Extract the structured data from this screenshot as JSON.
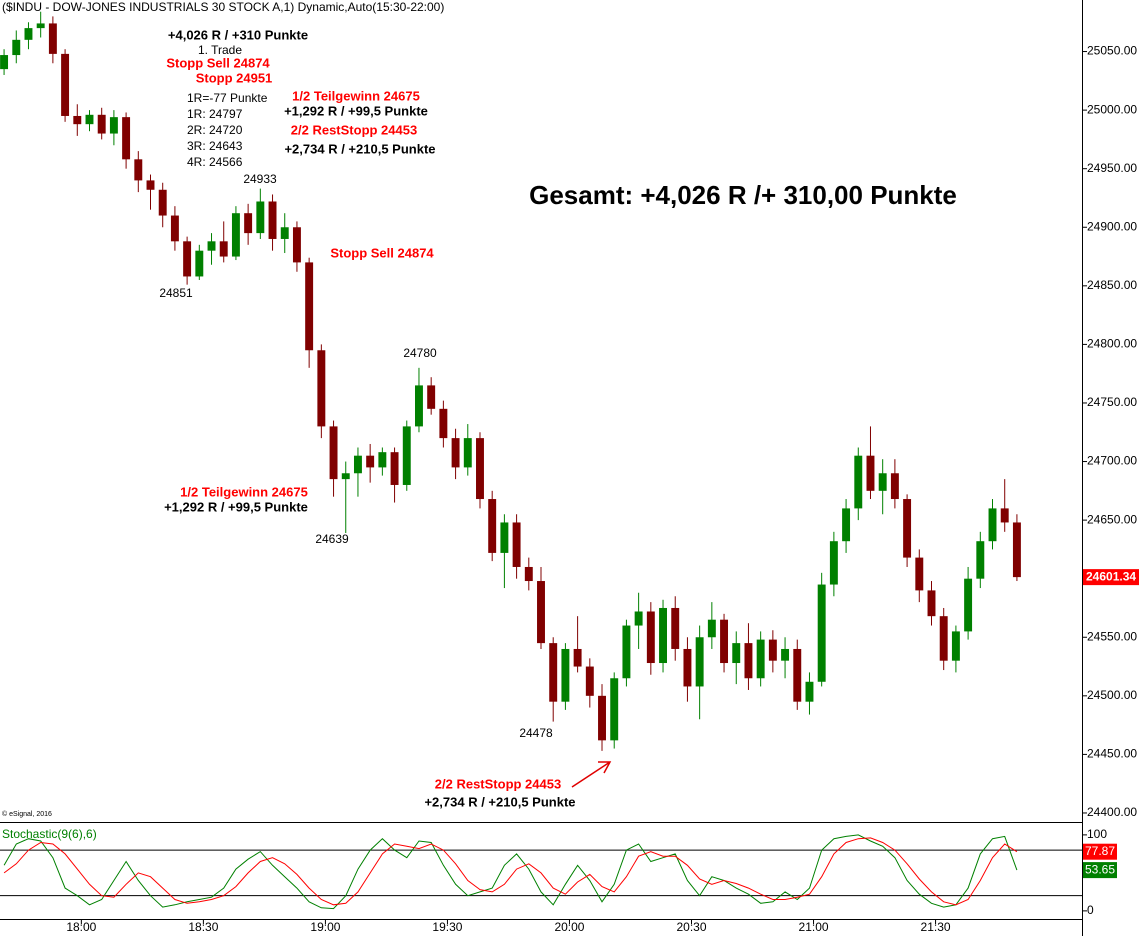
{
  "chart_data": [
    {
      "type": "candlestick",
      "title": "($INDU - DOW-JONES INDUSTRIALS 30 STOCK A,1) Dynamic,Auto(15:30-22:00)",
      "copyright": "© eSignal, 2016",
      "up_color": "#008000",
      "down_color": "#800000",
      "last_color": "#ff0000",
      "xlim": [
        1060,
        1326
      ],
      "ylim": [
        24394,
        25094
      ],
      "yticks": [
        {
          "value": 24400,
          "label": "24400.00"
        },
        {
          "value": 24450,
          "label": "24450.00"
        },
        {
          "value": 24500,
          "label": "24500.00"
        },
        {
          "value": 24550,
          "label": "24550.00"
        },
        {
          "value": 24600,
          "label": "24600.00"
        },
        {
          "value": 24650,
          "label": "24650.00"
        },
        {
          "value": 24700,
          "label": "24700.00"
        },
        {
          "value": 24750,
          "label": "24750.00"
        },
        {
          "value": 24800,
          "label": "24800.00"
        },
        {
          "value": 24850,
          "label": "24850.00"
        },
        {
          "value": 24900,
          "label": "24900.00"
        },
        {
          "value": 24950,
          "label": "24950.00"
        },
        {
          "value": 25000,
          "label": "25000.00"
        },
        {
          "value": 25050,
          "label": "25050.00"
        }
      ],
      "x": [
        1061,
        1064,
        1067,
        1070,
        1073,
        1076,
        1079,
        1082,
        1085,
        1088,
        1091,
        1094,
        1097,
        1100,
        1103,
        1106,
        1109,
        1112,
        1115,
        1118,
        1121,
        1124,
        1127,
        1130,
        1133,
        1136,
        1139,
        1142,
        1145,
        1148,
        1151,
        1154,
        1157,
        1160,
        1163,
        1166,
        1169,
        1172,
        1175,
        1178,
        1181,
        1184,
        1187,
        1190,
        1193,
        1196,
        1199,
        1202,
        1205,
        1208,
        1211,
        1214,
        1217,
        1220,
        1223,
        1226,
        1229,
        1232,
        1235,
        1238,
        1241,
        1244,
        1247,
        1250,
        1253,
        1256,
        1259,
        1262,
        1265,
        1268,
        1271,
        1274,
        1277,
        1280,
        1283,
        1286,
        1289,
        1292,
        1295,
        1298,
        1301,
        1304,
        1307,
        1310
      ],
      "open": [
        25035,
        25047,
        25060,
        25070,
        25074,
        25048,
        24995,
        24988,
        24996,
        24980,
        24994,
        24958,
        24940,
        24932,
        24910,
        24888,
        24858,
        24880,
        24888,
        24875,
        24912,
        24895,
        24922,
        24890,
        24900,
        24870,
        24795,
        24730,
        24685,
        24690,
        24705,
        24695,
        24708,
        24680,
        24730,
        24765,
        24745,
        24720,
        24695,
        24720,
        24668,
        24622,
        24648,
        24610,
        24598,
        24545,
        24495,
        24540,
        24525,
        24500,
        24462,
        24515,
        24560,
        24572,
        24528,
        24575,
        24540,
        24508,
        24550,
        24565,
        24528,
        24545,
        24515,
        24548,
        24530,
        24540,
        24495,
        24512,
        24595,
        24632,
        24660,
        24705,
        24675,
        24690,
        24668,
        24618,
        24590,
        24568,
        24530,
        24555,
        24600,
        24632,
        24660,
        24648
      ],
      "high": [
        25052,
        25068,
        25075,
        25084,
        25080,
        25052,
        25005,
        25000,
        25002,
        25000,
        24998,
        24965,
        24945,
        24938,
        24918,
        24892,
        24885,
        24895,
        24905,
        24918,
        24920,
        24933,
        24928,
        24912,
        24905,
        24874,
        24800,
        24735,
        24700,
        24712,
        24715,
        24712,
        24712,
        24735,
        24780,
        24772,
        24752,
        24728,
        24732,
        24725,
        24675,
        24655,
        24655,
        24618,
        24610,
        24550,
        24545,
        24568,
        24532,
        24510,
        24520,
        24565,
        24588,
        24580,
        24582,
        24585,
        24550,
        24560,
        24580,
        24570,
        24555,
        24562,
        24555,
        24556,
        24550,
        24548,
        24520,
        24605,
        24640,
        24668,
        24712,
        24730,
        24702,
        24702,
        24672,
        24625,
        24598,
        24575,
        24560,
        24610,
        24640,
        24668,
        24685,
        24655
      ],
      "low": [
        25030,
        25040,
        25052,
        25062,
        25040,
        24990,
        24978,
        24982,
        24975,
        24970,
        24950,
        24930,
        24915,
        24900,
        24880,
        24851,
        24855,
        24868,
        24870,
        24872,
        24885,
        24890,
        24880,
        24878,
        24862,
        24780,
        24720,
        24670,
        24639,
        24670,
        24682,
        24688,
        24665,
        24675,
        24725,
        24740,
        24712,
        24685,
        24688,
        24660,
        24615,
        24592,
        24600,
        24590,
        24540,
        24478,
        24488,
        24520,
        24490,
        24453,
        24455,
        24508,
        24540,
        24518,
        24520,
        24530,
        24495,
        24480,
        24540,
        24520,
        24510,
        24505,
        24508,
        24520,
        24515,
        24488,
        24484,
        24508,
        24585,
        24622,
        24650,
        24668,
        24655,
        24660,
        24610,
        24580,
        24560,
        24522,
        24520,
        24548,
        24592,
        24625,
        24640,
        24598
      ],
      "close": [
        25047,
        25060,
        25070,
        25074,
        25048,
        24995,
        24988,
        24996,
        24980,
        24994,
        24958,
        24940,
        24932,
        24910,
        24888,
        24858,
        24880,
        24888,
        24875,
        24912,
        24895,
        24922,
        24890,
        24900,
        24870,
        24795,
        24730,
        24685,
        24690,
        24705,
        24695,
        24708,
        24680,
        24730,
        24765,
        24745,
        24720,
        24695,
        24720,
        24668,
        24622,
        24648,
        24610,
        24598,
        24545,
        24495,
        24540,
        24525,
        24500,
        24462,
        24515,
        24560,
        24572,
        24528,
        24575,
        24540,
        24508,
        24550,
        24565,
        24528,
        24545,
        24515,
        24548,
        24530,
        24540,
        24495,
        24512,
        24595,
        24632,
        24660,
        24705,
        24675,
        24690,
        24668,
        24618,
        24590,
        24568,
        24530,
        24555,
        24600,
        24632,
        24660,
        24648,
        24601.34
      ],
      "annotations": [
        {
          "text": "+4,026 R / +310 Punkte",
          "color": "#000000"
        },
        {
          "text": "1. Trade",
          "color": "#000000"
        },
        {
          "text": "Stopp Sell 24874",
          "color": "#ff0000"
        },
        {
          "text": "Stopp 24951",
          "color": "#ff0000"
        },
        {
          "text": "1R=-77 Punkte",
          "color": "#000000"
        },
        {
          "text": "1R: 24797",
          "color": "#000000"
        },
        {
          "text": "2R: 24720",
          "color": "#000000"
        },
        {
          "text": "3R: 24643",
          "color": "#000000"
        },
        {
          "text": "4R: 24566",
          "color": "#000000"
        },
        {
          "text": "1/2 Teilgewinn 24675",
          "color": "#ff0000"
        },
        {
          "text": "+1,292 R / +99,5 Punkte",
          "color": "#000000"
        },
        {
          "text": "2/2 RestStopp 24453",
          "color": "#ff0000"
        },
        {
          "text": "+2,734 R / +210,5 Punkte",
          "color": "#000000"
        },
        {
          "text": "Gesamt: +4,026 R /+ 310,00 Punkte",
          "color": "#000000"
        },
        {
          "text": "24933",
          "color": "#000000"
        },
        {
          "text": "24851",
          "color": "#000000"
        },
        {
          "text": "Stopp Sell 24874",
          "color": "#ff0000"
        },
        {
          "text": "24780",
          "color": "#000000"
        },
        {
          "text": "1/2 Teilgewinn 24675",
          "color": "#ff0000"
        },
        {
          "text": "+1,292 R / +99,5 Punkte",
          "color": "#000000"
        },
        {
          "text": "24639",
          "color": "#000000"
        },
        {
          "text": "24478",
          "color": "#000000"
        },
        {
          "text": "2/2 RestStopp 24453",
          "color": "#ff0000"
        },
        {
          "text": "+2,734 R / +210,5 Punkte",
          "color": "#000000"
        }
      ]
    },
    {
      "type": "line",
      "title": "Stochastic(9(6),6)",
      "xlim": [
        1060,
        1326
      ],
      "xticks": [
        {
          "value": 1080,
          "label": "18:00"
        },
        {
          "value": 1110,
          "label": "18:30"
        },
        {
          "value": 1140,
          "label": "19:00"
        },
        {
          "value": 1170,
          "label": "19:30"
        },
        {
          "value": 1200,
          "label": "20:00"
        },
        {
          "value": 1230,
          "label": "20:30"
        },
        {
          "value": 1260,
          "label": "21:00"
        },
        {
          "value": 1290,
          "label": "21:30"
        }
      ],
      "ylim": [
        -12,
        113
      ],
      "yticks": [
        0,
        100
      ],
      "levels": [
        20,
        80
      ],
      "x": [
        1061,
        1064,
        1067,
        1070,
        1073,
        1076,
        1079,
        1082,
        1085,
        1088,
        1091,
        1094,
        1097,
        1100,
        1103,
        1106,
        1109,
        1112,
        1115,
        1118,
        1121,
        1124,
        1127,
        1130,
        1133,
        1136,
        1139,
        1142,
        1145,
        1148,
        1151,
        1154,
        1157,
        1160,
        1163,
        1166,
        1169,
        1172,
        1175,
        1178,
        1181,
        1184,
        1187,
        1190,
        1193,
        1196,
        1199,
        1202,
        1205,
        1208,
        1211,
        1214,
        1217,
        1220,
        1223,
        1226,
        1229,
        1232,
        1235,
        1238,
        1241,
        1244,
        1247,
        1250,
        1253,
        1256,
        1259,
        1262,
        1265,
        1268,
        1271,
        1274,
        1277,
        1280,
        1283,
        1286,
        1289,
        1292,
        1295,
        1298,
        1301,
        1304,
        1307,
        1310
      ],
      "series": [
        {
          "name": "%K",
          "color": "#008000",
          "values": [
            60,
            88,
            95,
            92,
            70,
            30,
            20,
            8,
            15,
            40,
            65,
            40,
            20,
            5,
            8,
            12,
            15,
            18,
            30,
            55,
            68,
            78,
            60,
            45,
            30,
            12,
            4,
            3,
            20,
            55,
            80,
            95,
            80,
            70,
            92,
            90,
            60,
            35,
            20,
            25,
            30,
            60,
            75,
            55,
            25,
            8,
            35,
            60,
            40,
            12,
            35,
            80,
            88,
            65,
            70,
            75,
            40,
            20,
            45,
            40,
            30,
            22,
            10,
            12,
            25,
            15,
            30,
            80,
            95,
            98,
            100,
            92,
            85,
            70,
            40,
            22,
            10,
            5,
            8,
            30,
            75,
            95,
            98,
            53.65
          ]
        },
        {
          "name": "%D",
          "color": "#ff0000",
          "values": [
            50,
            62,
            80,
            90,
            88,
            75,
            55,
            35,
            20,
            18,
            35,
            50,
            45,
            30,
            15,
            10,
            12,
            15,
            20,
            32,
            50,
            65,
            70,
            62,
            48,
            30,
            15,
            8,
            10,
            25,
            50,
            75,
            88,
            85,
            82,
            88,
            80,
            62,
            40,
            28,
            25,
            35,
            55,
            62,
            50,
            30,
            22,
            38,
            48,
            32,
            25,
            45,
            72,
            78,
            72,
            72,
            60,
            42,
            35,
            40,
            36,
            30,
            22,
            15,
            15,
            18,
            22,
            45,
            75,
            90,
            95,
            96,
            90,
            80,
            62,
            42,
            25,
            12,
            8,
            15,
            40,
            70,
            88,
            77.87
          ]
        }
      ]
    }
  ]
}
